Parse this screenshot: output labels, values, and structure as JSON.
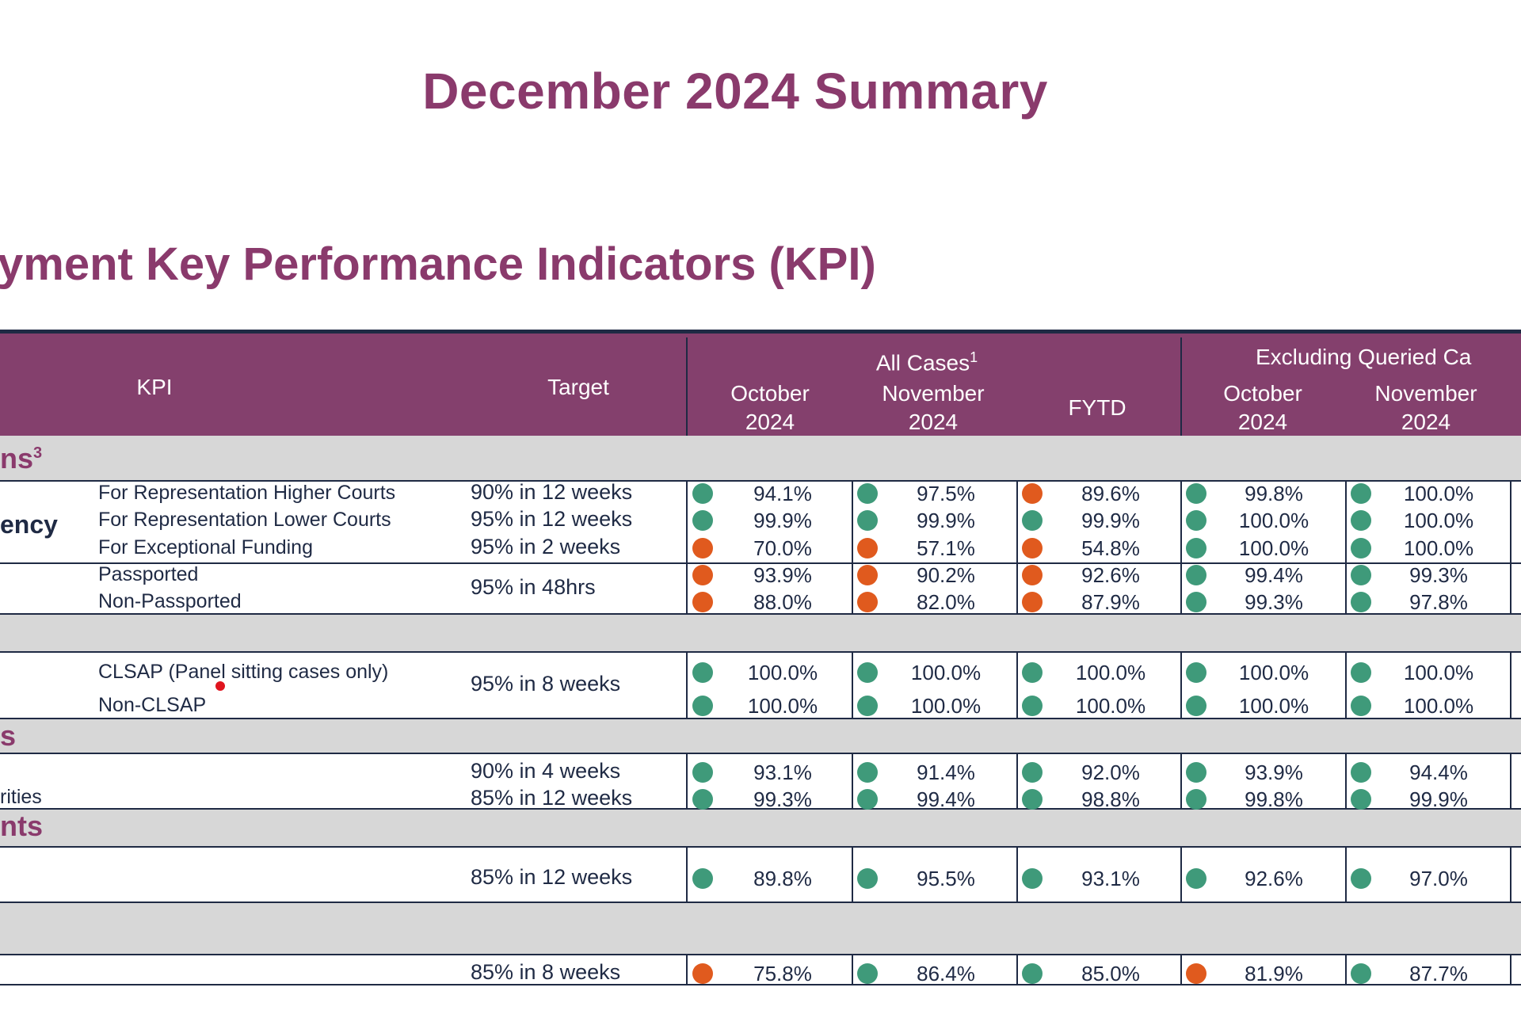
{
  "page_title": "December 2024 Summary",
  "section_title": "yment Key Performance Indicators (KPI)",
  "colors": {
    "brand": "#84406d",
    "title": "#8a3a6c",
    "green": "#3f9a7a",
    "red": "#e05a1e",
    "band": "#d7d7d7"
  },
  "header": {
    "kpi": "KPI",
    "target": "Target",
    "all_cases": "All Cases",
    "all_cases_note": "1",
    "excluding": "Excluding Queried Ca",
    "oct_line1": "October",
    "oct_line2": "2024",
    "nov_line1": "November",
    "nov_line2": "2024",
    "fytd": "FYTD"
  },
  "bands": {
    "b1": "ns",
    "b1_note": "3",
    "b3": "s",
    "b4": "nts"
  },
  "groups": {
    "g1_label": "ency"
  },
  "rows": [
    {
      "label": "For Representation Higher Courts",
      "target": "90% in 12 weeks",
      "values": [
        "94.1%",
        "97.5%",
        "89.6%",
        "99.8%",
        "100.0%"
      ],
      "status": [
        "green",
        "green",
        "red",
        "green",
        "green"
      ]
    },
    {
      "label": "For Representation Lower Courts",
      "target": "95% in 12 weeks",
      "values": [
        "99.9%",
        "99.9%",
        "99.9%",
        "100.0%",
        "100.0%"
      ],
      "status": [
        "green",
        "green",
        "green",
        "green",
        "green"
      ]
    },
    {
      "label": "For Exceptional Funding",
      "target": "95% in 2 weeks",
      "values": [
        "70.0%",
        "57.1%",
        "54.8%",
        "100.0%",
        "100.0%"
      ],
      "status": [
        "red",
        "red",
        "red",
        "green",
        "green"
      ]
    },
    {
      "label": "Passported",
      "target": "95% in 48hrs",
      "values": [
        "93.9%",
        "90.2%",
        "92.6%",
        "99.4%",
        "99.3%"
      ],
      "status": [
        "red",
        "red",
        "red",
        "green",
        "green"
      ]
    },
    {
      "label": "Non-Passported",
      "target": "",
      "values": [
        "88.0%",
        "82.0%",
        "87.9%",
        "99.3%",
        "97.8%"
      ],
      "status": [
        "red",
        "red",
        "red",
        "green",
        "green"
      ]
    },
    {
      "label": "CLSAP (Panel sitting cases only)",
      "target": "95% in 8 weeks",
      "values": [
        "100.0%",
        "100.0%",
        "100.0%",
        "100.0%",
        "100.0%"
      ],
      "status": [
        "green",
        "green",
        "green",
        "green",
        "green"
      ]
    },
    {
      "label": "Non-CLSAP",
      "target": "",
      "values": [
        "100.0%",
        "100.0%",
        "100.0%",
        "100.0%",
        "100.0%"
      ],
      "status": [
        "green",
        "green",
        "green",
        "green",
        "green"
      ]
    },
    {
      "label": "",
      "target": "90% in 4 weeks",
      "values": [
        "93.1%",
        "91.4%",
        "92.0%",
        "93.9%",
        "94.4%"
      ],
      "status": [
        "green",
        "green",
        "green",
        "green",
        "green"
      ]
    },
    {
      "label": "rities",
      "target": "85% in 12 weeks",
      "values": [
        "99.3%",
        "99.4%",
        "98.8%",
        "99.8%",
        "99.9%"
      ],
      "status": [
        "green",
        "green",
        "green",
        "green",
        "green"
      ]
    },
    {
      "label": "",
      "target": "85% in 12 weeks",
      "values": [
        "89.8%",
        "95.5%",
        "93.1%",
        "92.6%",
        "97.0%"
      ],
      "status": [
        "green",
        "green",
        "green",
        "green",
        "green"
      ]
    },
    {
      "label": "",
      "target": "85% in 8 weeks",
      "values": [
        "75.8%",
        "86.4%",
        "85.0%",
        "81.9%",
        "87.7%"
      ],
      "status": [
        "red",
        "green",
        "green",
        "red",
        "green"
      ]
    }
  ]
}
